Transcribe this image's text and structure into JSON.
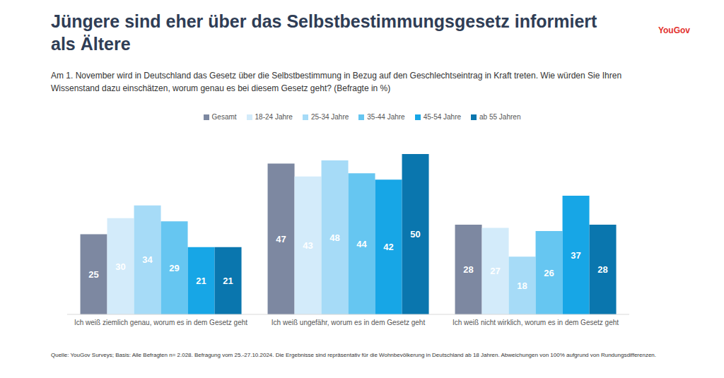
{
  "chart_data": {
    "type": "bar",
    "title": "Jüngere sind eher über das Selbstbestimmungsgesetz informiert als Ältere",
    "subtitle": "Am 1. November wird in Deutschland das Gesetz über die Selbstbestimmung in Bezug auf den Geschlechtseintrag in Kraft treten. Wie würden Sie Ihren Wissenstand dazu einschätzen, worum genau es bei diesem Gesetz geht? (Befragte in %)",
    "annotations": [
      "YouGov",
      "Quelle: YouGov Surveys; Basis: Alle Befragten n= 2.028. Befragung vom 25.-27.10.2024. Die Ergebnisse sind repräsentativ für die Wohnbevölkerung in Deutschland ab 18 Jahren. Abweichungen von 100% aufgrund von Rundungsdifferenzen."
    ],
    "categories": [
      "Ich weiß ziemlich genau, worum es in dem Gesetz geht",
      "Ich weiß ungefähr, worum es in dem Gesetz geht",
      "Ich weiß nicht wirklich, worum es in dem Gesetz geht"
    ],
    "series": [
      {
        "name": "Gesamt",
        "color": "#7d88a1",
        "values": [
          25,
          47,
          28
        ]
      },
      {
        "name": "18-24 Jahre",
        "color": "#d3ebfa",
        "values": [
          30,
          43,
          27
        ]
      },
      {
        "name": "25-34 Jahre",
        "color": "#a6dbf7",
        "values": [
          34,
          48,
          18
        ]
      },
      {
        "name": "35-44 Jahre",
        "color": "#66c6f1",
        "values": [
          29,
          44,
          26
        ]
      },
      {
        "name": "45-54 Jahre",
        "color": "#17a6e6",
        "values": [
          21,
          42,
          37
        ]
      },
      {
        "name": "ab 55 Jahren",
        "color": "#0a76ae",
        "values": [
          21,
          50,
          28
        ]
      }
    ],
    "ylim": [
      0,
      50
    ],
    "data_labels": true,
    "tick_labels": "x",
    "grid": false
  }
}
